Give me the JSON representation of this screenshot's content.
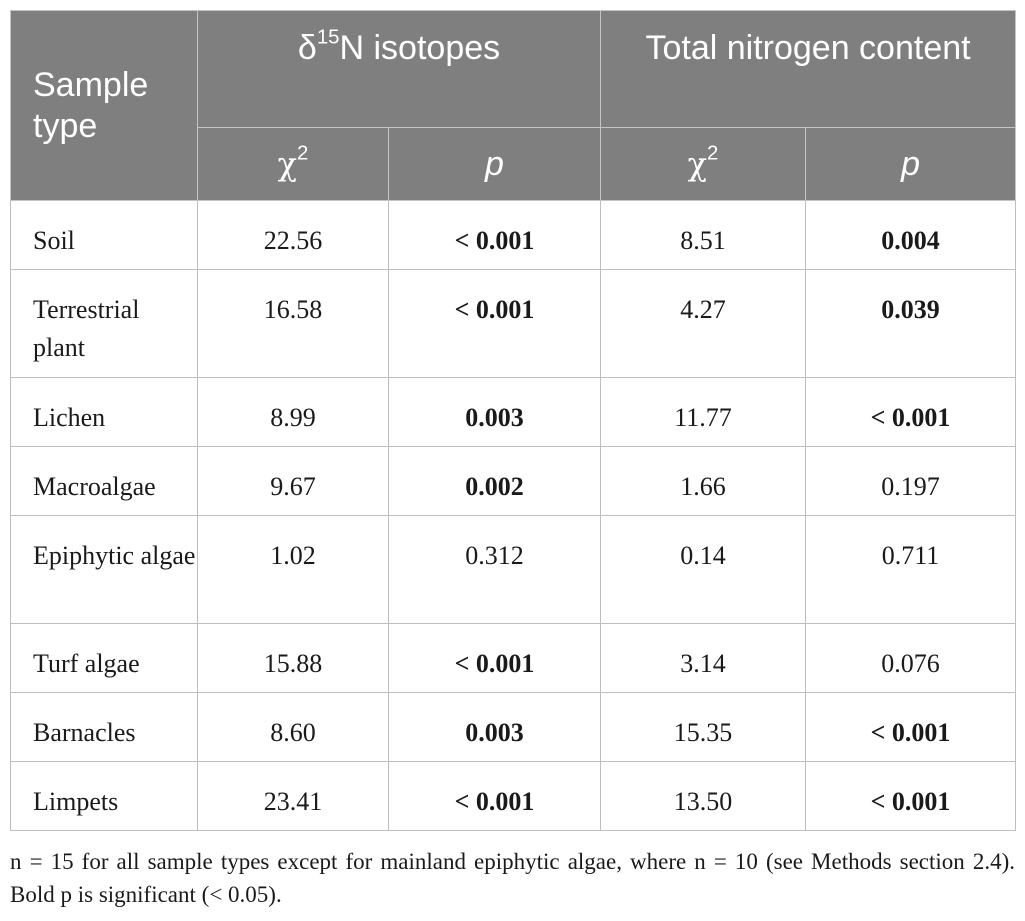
{
  "table": {
    "header": {
      "sample_type": "Sample type",
      "group1_delta": "δ",
      "group1_sup": "15",
      "group1_rest": "N isotopes",
      "group2": "Total nitrogen content",
      "chi_symbol": "χ",
      "chi_sup": "2",
      "p_label": "p"
    },
    "rows": [
      {
        "name": "Soil",
        "chi1": "22.56",
        "p1": "< 0.001",
        "p1_bold": true,
        "chi2": "8.51",
        "p2": "0.004",
        "p2_bold": true
      },
      {
        "name": "Terrestrial plant",
        "chi1": "16.58",
        "p1": "< 0.001",
        "p1_bold": true,
        "chi2": "4.27",
        "p2": "0.039",
        "p2_bold": true
      },
      {
        "name": "Lichen",
        "chi1": "8.99",
        "p1": "0.003",
        "p1_bold": true,
        "chi2": "11.77",
        "p2": "< 0.001",
        "p2_bold": true
      },
      {
        "name": "Macroalgae",
        "chi1": "9.67",
        "p1": "0.002",
        "p1_bold": true,
        "chi2": "1.66",
        "p2": "0.197",
        "p2_bold": false
      },
      {
        "name": "Epiphytic algae",
        "chi1": "1.02",
        "p1": "0.312",
        "p1_bold": false,
        "chi2": "0.14",
        "p2": "0.711",
        "p2_bold": false
      },
      {
        "name": "Turf algae",
        "chi1": "15.88",
        "p1": "< 0.001",
        "p1_bold": true,
        "chi2": "3.14",
        "p2": "0.076",
        "p2_bold": false
      },
      {
        "name": "Barnacles",
        "chi1": "8.60",
        "p1": "0.003",
        "p1_bold": true,
        "chi2": "15.35",
        "p2": "< 0.001",
        "p2_bold": true
      },
      {
        "name": "Limpets",
        "chi1": "23.41",
        "p1": "< 0.001",
        "p1_bold": true,
        "chi2": "13.50",
        "p2": "< 0.001",
        "p2_bold": true
      }
    ]
  },
  "footnote": "n = 15 for all sample types except for mainland epiphytic algae, where n = 10 (see Methods section 2.4). Bold p is significant (< 0.05).",
  "colors": {
    "header_bg": "#7f7f7f",
    "header_text": "#ffffff",
    "grid": "#bdbdbd"
  }
}
